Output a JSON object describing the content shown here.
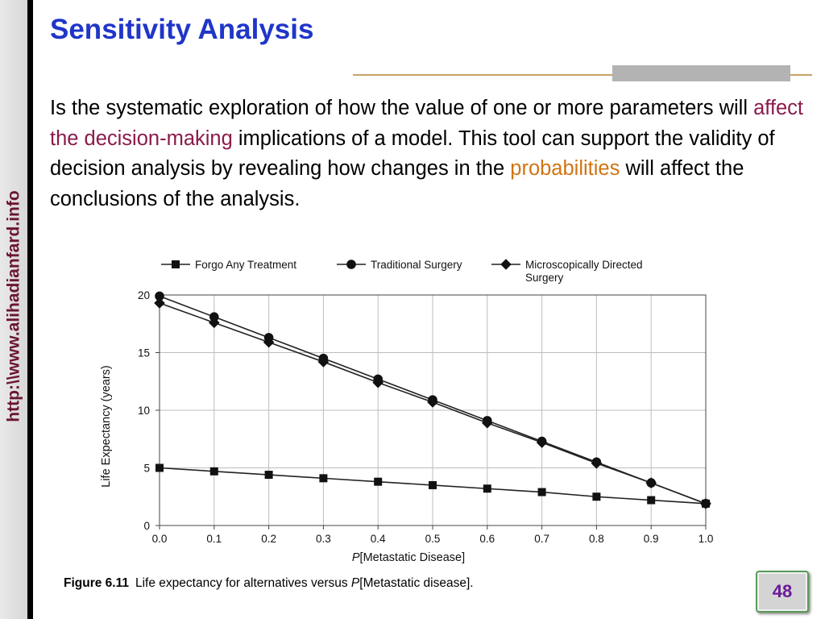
{
  "sidebar": {
    "url": "http:\\\\www.alihadianfard.info"
  },
  "slide": {
    "title": "Sensitivity Analysis",
    "body": {
      "p1": "Is the systematic exploration of how the value of one or more parameters will ",
      "h1": "affect the decision-making",
      "p2": " implications of a model. This tool can support the validity of decision analysis by revealing how changes in the ",
      "h2": "probabilities",
      "p3": " will affect the conclusions of the analysis."
    },
    "page_number": "48"
  },
  "figure": {
    "label": "Figure 6.11",
    "caption_pre": "Life expectancy for alternatives versus ",
    "caption_p": "P",
    "caption_post": "[Metastatic disease]."
  },
  "colors": {
    "title": "#1f36c9",
    "highlight_red": "#8b1a4a",
    "highlight_orange": "#d07414",
    "sidebar_text": "#6b1533",
    "page_number": "#6a1b9a"
  },
  "chart_data": {
    "type": "line",
    "title": "",
    "xlabel_p": "P",
    "xlabel_rest": "[Metastatic Disease]",
    "ylabel": "Life Expectancy (years)",
    "xlim": [
      0,
      1
    ],
    "ylim": [
      0,
      20
    ],
    "x": [
      0.0,
      0.1,
      0.2,
      0.3,
      0.4,
      0.5,
      0.6,
      0.7,
      0.8,
      0.9,
      1.0
    ],
    "x_tick_labels": [
      "0.0",
      "0.1",
      "0.2",
      "0.3",
      "0.4",
      "0.5",
      "0.6",
      "0.7",
      "0.8",
      "0.9",
      "1.0"
    ],
    "y_ticks": [
      0,
      5,
      10,
      15,
      20
    ],
    "y_tick_labels": [
      "0",
      "5",
      "10",
      "15",
      "20"
    ],
    "grid": true,
    "legend_position": "top",
    "series": [
      {
        "name": "Forgo Any Treatment",
        "marker": "square",
        "values": [
          5.0,
          4.7,
          4.4,
          4.1,
          3.8,
          3.5,
          3.2,
          2.9,
          2.5,
          2.2,
          1.9
        ]
      },
      {
        "name": "Traditional Surgery",
        "marker": "circle",
        "values": [
          19.9,
          18.1,
          16.3,
          14.5,
          12.7,
          10.9,
          9.1,
          7.3,
          5.5,
          3.7,
          1.9
        ]
      },
      {
        "name": "Microscopically Directed Surgery",
        "legend_lines": [
          "Microscopically Directed",
          "Surgery"
        ],
        "marker": "diamond",
        "values": [
          19.3,
          17.6,
          15.9,
          14.2,
          12.4,
          10.7,
          8.9,
          7.2,
          5.4,
          3.7,
          1.9
        ]
      }
    ]
  }
}
